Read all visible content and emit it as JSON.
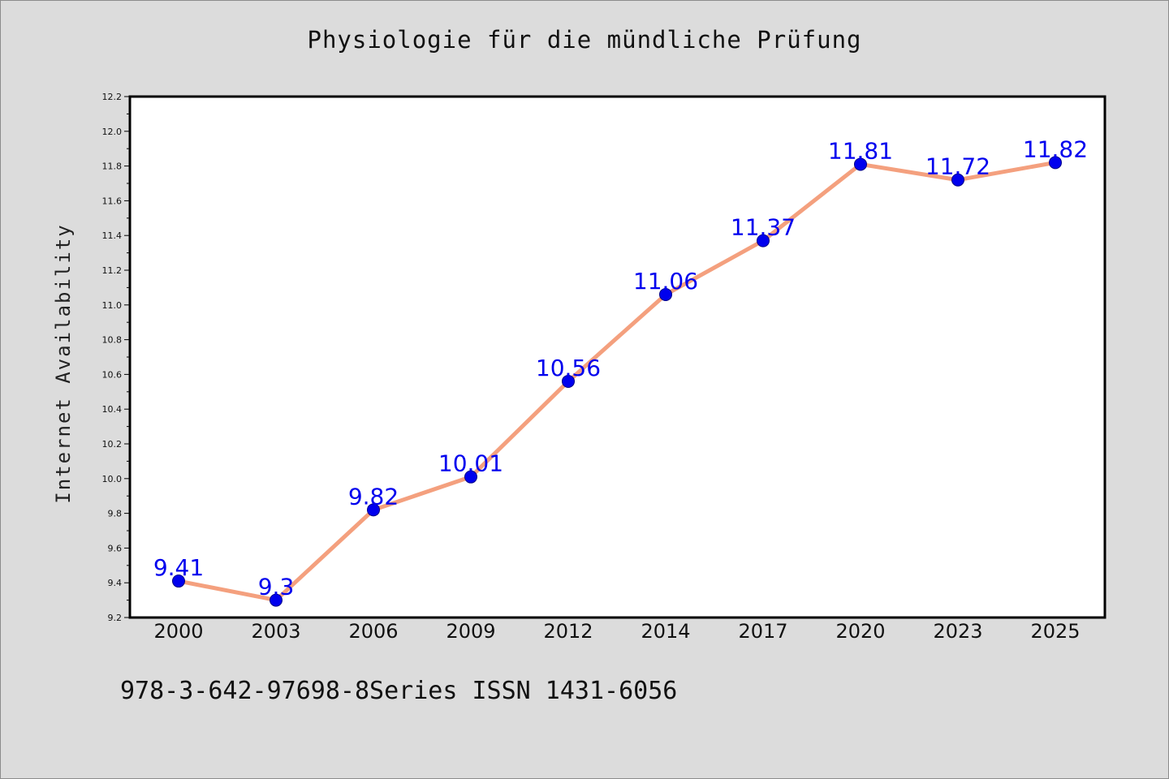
{
  "chart_data": {
    "type": "line",
    "title": "Physiologie für die mündliche Prüfung",
    "xlabel": "",
    "ylabel": "Internet Availability",
    "categories": [
      "2000",
      "2003",
      "2006",
      "2009",
      "2012",
      "2014",
      "2017",
      "2020",
      "2023",
      "2025"
    ],
    "series": [
      {
        "values": [
          9.41,
          9.3,
          9.82,
          10.01,
          10.56,
          11.06,
          11.37,
          11.81,
          11.72,
          11.82
        ],
        "line_color": "#f4a07e",
        "marker_color": "#0000ee",
        "label_color": "#0000ee"
      }
    ],
    "ylim": [
      9.2,
      12.2
    ],
    "yticks": [
      "9.2",
      "9.4",
      "9.6",
      "9.8",
      "10.0",
      "10.2",
      "10.4",
      "10.6",
      "10.8",
      "11.0",
      "11.2",
      "11.4",
      "11.6",
      "11.8",
      "12.0",
      "12.2"
    ],
    "grid": false,
    "legend": "none",
    "data_labels": true
  },
  "footer": {
    "text": "978-3-642-97698-8Series ISSN 1431-6056"
  },
  "colors": {
    "background": "#dcdcdc",
    "plot_background": "#ffffff",
    "axis": "#000000"
  }
}
